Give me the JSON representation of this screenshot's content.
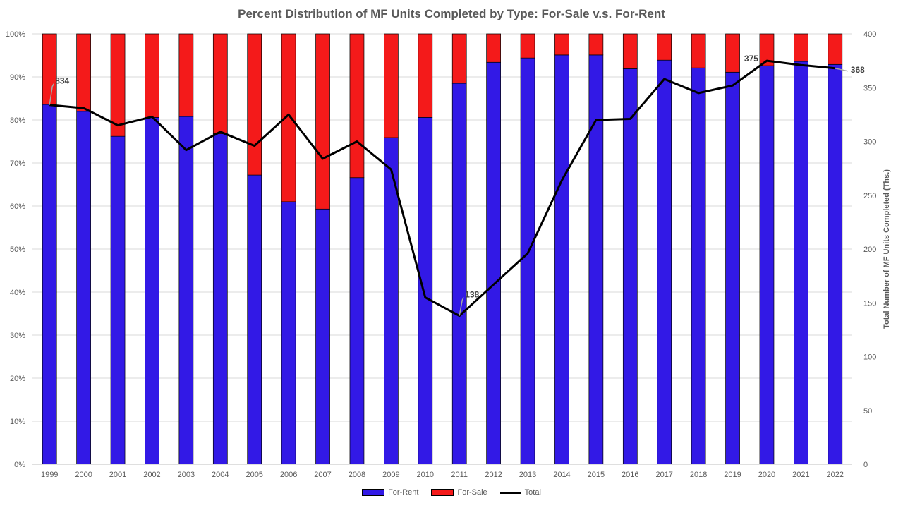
{
  "chart_data": {
    "type": "bar",
    "stacked": true,
    "title": "Percent Distribution of MF Units Completed by Type: For-Sale v.s. For-Rent",
    "xlabel": "",
    "ylabel": "",
    "y2label": "Total Number of MF Units Completed (Ths.)",
    "ylim": [
      0,
      100
    ],
    "y2lim": [
      0,
      400
    ],
    "yticks": [
      "0%",
      "10%",
      "20%",
      "30%",
      "40%",
      "50%",
      "60%",
      "70%",
      "80%",
      "90%",
      "100%"
    ],
    "y2ticks": [
      "0",
      "50",
      "100",
      "150",
      "200",
      "250",
      "300",
      "350",
      "400"
    ],
    "grid": true,
    "legend_position": "bottom",
    "categories": [
      "1999",
      "2000",
      "2001",
      "2002",
      "2003",
      "2004",
      "2005",
      "2006",
      "2007",
      "2008",
      "2009",
      "2010",
      "2011",
      "2012",
      "2013",
      "2014",
      "2015",
      "2016",
      "2017",
      "2018",
      "2019",
      "2020",
      "2021",
      "2022"
    ],
    "series": [
      {
        "name": "For-Rent",
        "color": "#3219E6",
        "axis": "left",
        "values": [
          83.6,
          82.0,
          76.2,
          80.6,
          80.8,
          76.8,
          67.2,
          61.0,
          59.3,
          66.6,
          75.9,
          80.6,
          88.5,
          93.4,
          94.4,
          95.1,
          95.1,
          91.9,
          93.9,
          92.1,
          91.1,
          92.6,
          93.6,
          92.9
        ]
      },
      {
        "name": "For-Sale",
        "color": "#F41A1A",
        "axis": "left",
        "values": [
          16.4,
          18.0,
          23.8,
          19.4,
          19.2,
          23.2,
          32.8,
          39.0,
          40.7,
          33.4,
          24.1,
          19.4,
          11.5,
          6.6,
          5.6,
          4.9,
          4.9,
          8.1,
          6.1,
          7.9,
          8.9,
          7.4,
          6.4,
          7.1
        ]
      },
      {
        "name": "Total",
        "color": "#000000",
        "axis": "right",
        "kind": "line",
        "values": [
          334,
          331,
          315,
          323,
          292,
          309,
          296,
          325,
          284,
          300,
          274,
          155,
          138,
          167,
          196,
          264,
          320,
          321,
          358,
          345,
          352,
          375,
          371,
          368
        ]
      }
    ],
    "data_labels": [
      {
        "index": 0,
        "text": "334"
      },
      {
        "index": 12,
        "text": "138"
      },
      {
        "index": 21,
        "text": "375"
      },
      {
        "index": 23,
        "text": "368"
      }
    ]
  }
}
